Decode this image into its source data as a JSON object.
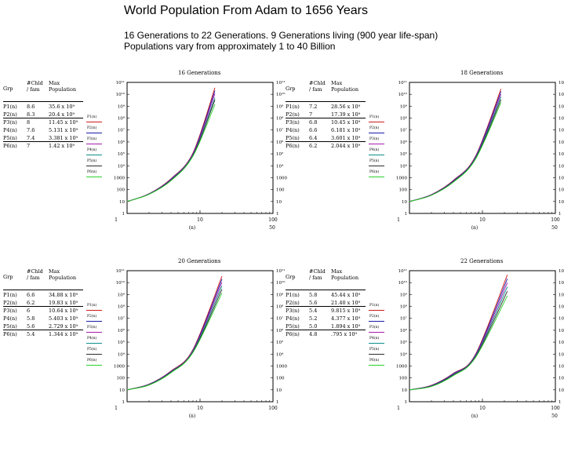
{
  "header": {
    "title": "World Population From Adam to 1656 Years",
    "subtitle_line1": "16 Generations to 22 Generations. 9 Generations living (900 year life-span)",
    "subtitle_line2": "Populations vary from approximately 1 to 40 Billion"
  },
  "series_colors": [
    "#d01a1a",
    "#1a1aaa",
    "#a81ab0",
    "#0a8f8a",
    "#2a2a2a",
    "#2ad12a"
  ],
  "table_headers": {
    "grp": "Grp",
    "chld_a": "#Chld",
    "chld_b": "/ fam",
    "max_a": "Max",
    "max_b": "Population"
  },
  "panels": [
    {
      "title": "16 Generations",
      "rows": [
        {
          "grp": "P1(n)",
          "chld": "8.6",
          "max": "35.6 x 10⁹"
        },
        {
          "grp": "P2(n)",
          "chld": "8.3",
          "max": "20.4 x 10⁹"
        },
        {
          "grp": "P3(n)",
          "chld": "8",
          "max": "11.45 x 10⁹"
        },
        {
          "grp": "P4(n)",
          "chld": "7.6",
          "max": "5.131 x 10⁹"
        },
        {
          "grp": "P5(n)",
          "chld": "7.4",
          "max": "3.381 x 10⁹"
        },
        {
          "grp": "P6(n)",
          "chld": "7",
          "max": "1.42 x 10⁹"
        }
      ],
      "legend": [
        "P1(n)",
        "P2(n)",
        "P3(n)",
        "P4(n)",
        "P5(n)",
        "P6(n)"
      ],
      "y_ticks": [
        "1",
        "10",
        "100",
        "1000",
        "10⁴",
        "10⁵",
        "10⁶",
        "10⁷",
        "10⁸",
        "10⁹",
        "10¹⁰",
        "10¹¹"
      ],
      "x_ticks": [
        "1",
        "10",
        "100"
      ],
      "x_label": "(n)",
      "corner_label": "50"
    },
    {
      "title": "18 Generations",
      "rows": [
        {
          "grp": "P1(n)",
          "chld": "7.2",
          "max": "28.56 x 10⁹"
        },
        {
          "grp": "P2(n)",
          "chld": "7",
          "max": "17.39 x 10⁹"
        },
        {
          "grp": "P3(n)",
          "chld": "6.8",
          "max": "10.45 x 10⁹"
        },
        {
          "grp": "P4(n)",
          "chld": "6.6",
          "max": "6.181 x 10⁹"
        },
        {
          "grp": "P5(n)",
          "chld": "6.4",
          "max": "3.601 x 10⁹"
        },
        {
          "grp": "P6(n)",
          "chld": "6.2",
          "max": "2.044 x 10⁹"
        }
      ],
      "legend": [
        "P1(n)",
        "P2(n)",
        "P3(n)",
        "P4(n)",
        "P5(n)",
        "P6(n)"
      ],
      "y_ticks": [
        "1",
        "10",
        "100",
        "1000",
        "10⁴",
        "10⁵",
        "10⁶",
        "10⁷",
        "10⁸",
        "10⁹",
        "10¹⁰",
        "10¹¹"
      ],
      "x_ticks": [
        "1",
        "10",
        "100"
      ],
      "x_label": "(n)",
      "corner_label": "50"
    },
    {
      "title": "20 Generations",
      "rows": [
        {
          "grp": "P1(n)",
          "chld": "6.6",
          "max": "34.88 x 10⁹"
        },
        {
          "grp": "P2(n)",
          "chld": "6.2",
          "max": "19.83 x 10⁹"
        },
        {
          "grp": "P3(n)",
          "chld": "6",
          "max": "10.64 x 10⁹"
        },
        {
          "grp": "P4(n)",
          "chld": "5.8",
          "max": "5.403 x 10⁹"
        },
        {
          "grp": "P5(n)",
          "chld": "5.6",
          "max": "2.729 x 10⁹"
        },
        {
          "grp": "P6(n)",
          "chld": "5.4",
          "max": "1.344 x 10⁹"
        }
      ],
      "legend": [
        "P1(n)",
        "P2(n)",
        "P3(n)",
        "P4(n)",
        "P5(n)",
        "P6(n)"
      ],
      "y_ticks": [
        "1",
        "10",
        "100",
        "1000",
        "10⁴",
        "10⁵",
        "10⁶",
        "10⁷",
        "10⁸",
        "10⁹",
        "10¹⁰",
        "10¹¹"
      ],
      "x_ticks": [
        "1",
        "10",
        "100"
      ],
      "x_label": "(n)",
      "corner_label": ""
    },
    {
      "title": "22 Generations",
      "rows": [
        {
          "grp": "P1(n)",
          "chld": "5.8",
          "max": "45.44 x 10⁹"
        },
        {
          "grp": "P2(n)",
          "chld": "5.6",
          "max": "21.40 x 10⁹"
        },
        {
          "grp": "P3(n)",
          "chld": "5.4",
          "max": "9.815 x 10⁹"
        },
        {
          "grp": "P4(n)",
          "chld": "5.2",
          "max": "4.377 x 10⁹"
        },
        {
          "grp": "P5(n)",
          "chld": "5.0",
          "max": "1.894 x 10⁹"
        },
        {
          "grp": "P6(n)",
          "chld": "4.8",
          "max": ".795 x 10⁹"
        }
      ],
      "legend": [
        "P1(n)",
        "P2(n)",
        "P3(n)",
        "P4(n)",
        "P5(n)",
        "P6(n)"
      ],
      "y_ticks": [
        "1",
        "10",
        "100",
        "1000",
        "10⁴",
        "10⁵",
        "10⁶",
        "10⁷",
        "10⁸",
        "10⁹",
        "10¹⁰",
        "10¹¹"
      ],
      "x_ticks": [
        "1",
        "10",
        "100"
      ],
      "x_label": "(n)",
      "corner_label": "50"
    }
  ],
  "chart_data": [
    {
      "type": "line",
      "title": "16 Generations",
      "xlabel": "(n)",
      "x_scale": "log",
      "y_scale": "log",
      "xlim": [
        1,
        100
      ],
      "ylim": [
        1,
        100000000000
      ],
      "x": [
        1,
        2,
        4,
        8,
        16
      ],
      "series": [
        {
          "name": "P1(n)",
          "values": [
            10,
            45,
            820,
            120000,
            35600000000
          ]
        },
        {
          "name": "P2(n)",
          "values": [
            10,
            44,
            760,
            105000,
            20400000000
          ]
        },
        {
          "name": "P3(n)",
          "values": [
            10,
            43,
            700,
            92000,
            11450000000
          ]
        },
        {
          "name": "P4(n)",
          "values": [
            10,
            42,
            640,
            80000,
            5131000000
          ]
        },
        {
          "name": "P5(n)",
          "values": [
            10,
            41,
            600,
            72000,
            3381000000
          ]
        },
        {
          "name": "P6(n)",
          "values": [
            10,
            40,
            560,
            64000,
            1420000000
          ]
        }
      ]
    },
    {
      "type": "line",
      "title": "18 Generations",
      "xlabel": "(n)",
      "x_scale": "log",
      "y_scale": "log",
      "xlim": [
        1,
        100
      ],
      "ylim": [
        1,
        100000000000
      ],
      "x": [
        1,
        2,
        4,
        8,
        18
      ],
      "series": [
        {
          "name": "P1(n)",
          "values": [
            10,
            38,
            600,
            60000,
            28560000000
          ]
        },
        {
          "name": "P2(n)",
          "values": [
            10,
            37,
            560,
            54000,
            17390000000
          ]
        },
        {
          "name": "P3(n)",
          "values": [
            10,
            36,
            520,
            48000,
            10450000000
          ]
        },
        {
          "name": "P4(n)",
          "values": [
            10,
            35,
            480,
            43000,
            6181000000
          ]
        },
        {
          "name": "P5(n)",
          "values": [
            10,
            34,
            450,
            38000,
            3601000000
          ]
        },
        {
          "name": "P6(n)",
          "values": [
            10,
            33,
            420,
            34000,
            2044000000
          ]
        }
      ]
    },
    {
      "type": "line",
      "title": "20 Generations",
      "xlabel": "(n)",
      "x_scale": "log",
      "y_scale": "log",
      "xlim": [
        1,
        100
      ],
      "ylim": [
        1,
        100000000000
      ],
      "x": [
        1,
        2,
        4,
        8,
        20
      ],
      "series": [
        {
          "name": "P1(n)",
          "values": [
            10,
            30,
            380,
            24000,
            34880000000
          ]
        },
        {
          "name": "P2(n)",
          "values": [
            10,
            29,
            350,
            21000,
            19830000000
          ]
        },
        {
          "name": "P3(n)",
          "values": [
            10,
            28,
            330,
            19000,
            10640000000
          ]
        },
        {
          "name": "P4(n)",
          "values": [
            10,
            27,
            310,
            17000,
            5403000000
          ]
        },
        {
          "name": "P5(n)",
          "values": [
            10,
            26,
            290,
            15000,
            2729000000
          ]
        },
        {
          "name": "P6(n)",
          "values": [
            10,
            25,
            270,
            13500,
            1344000000
          ]
        }
      ]
    },
    {
      "type": "line",
      "title": "22 Generations",
      "xlabel": "(n)",
      "x_scale": "log",
      "y_scale": "log",
      "xlim": [
        1,
        100
      ],
      "ylim": [
        1,
        100000000000
      ],
      "x": [
        1,
        2,
        4,
        8,
        22
      ],
      "series": [
        {
          "name": "P1(n)",
          "values": [
            10,
            24,
            240,
            9000,
            45440000000
          ]
        },
        {
          "name": "P2(n)",
          "values": [
            10,
            23,
            220,
            8000,
            21400000000
          ]
        },
        {
          "name": "P3(n)",
          "values": [
            10,
            22,
            200,
            7000,
            9815000000
          ]
        },
        {
          "name": "P4(n)",
          "values": [
            10,
            21,
            185,
            6200,
            4377000000
          ]
        },
        {
          "name": "P5(n)",
          "values": [
            10,
            20,
            170,
            5500,
            1894000000
          ]
        },
        {
          "name": "P6(n)",
          "values": [
            10,
            19,
            155,
            4900,
            795000000
          ]
        }
      ]
    }
  ]
}
